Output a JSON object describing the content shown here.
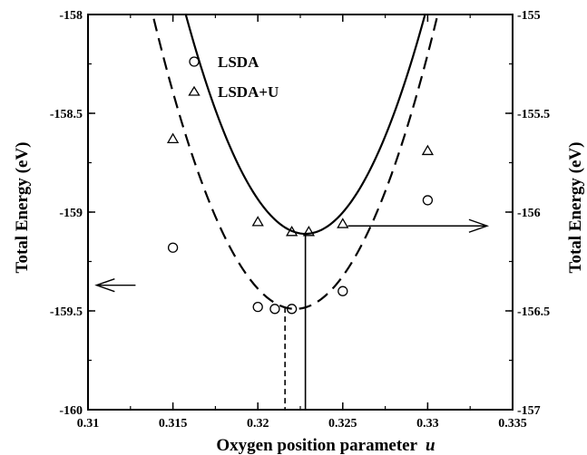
{
  "chart_data": {
    "type": "scatter",
    "xlabel": "Oxygen position parameter",
    "xlabel_symbol": "u",
    "ylabel_left": "Total Energy (eV)",
    "ylabel_right": "Total Energy (eV)",
    "xlim": [
      0.31,
      0.335
    ],
    "ylim_left": [
      -160,
      -158
    ],
    "ylim_right": [
      -157,
      -155
    ],
    "x_ticks": [
      0.31,
      0.315,
      0.32,
      0.325,
      0.33,
      0.335
    ],
    "x_tick_labels": [
      "0.31",
      "0.315",
      "0.32",
      "0.325",
      "0.33",
      "0.335"
    ],
    "y_left_ticks": [
      -160,
      -159.5,
      -159,
      -158.5,
      -158
    ],
    "y_left_tick_labels": [
      "-160",
      "-159.5",
      "-159",
      "-158.5",
      "-158"
    ],
    "y_right_ticks": [
      -157,
      -156.5,
      -156,
      -155.5,
      -155
    ],
    "y_right_tick_labels": [
      "-157",
      "-156.5",
      "-156",
      "-155.5",
      "-155"
    ],
    "series": [
      {
        "name": "LSDA",
        "axis": "left",
        "marker": "circle",
        "fit_line": "dashed",
        "x": [
          0.315,
          0.32,
          0.321,
          0.322,
          0.325,
          0.33
        ],
        "y": [
          -159.18,
          -159.48,
          -159.49,
          -159.49,
          -159.4,
          -158.94
        ]
      },
      {
        "name": "LSDA+U",
        "axis": "right",
        "marker": "triangle",
        "fit_line": "solid",
        "x": [
          0.315,
          0.32,
          0.322,
          0.323,
          0.325,
          0.33
        ],
        "y": [
          -155.63,
          -156.05,
          -156.1,
          -156.1,
          -156.06,
          -155.69
        ]
      }
    ],
    "fits": [
      {
        "series": "LSDA",
        "axis": "left",
        "vertex_x": 0.3222,
        "vertex_y": -159.49,
        "a": 21170
      },
      {
        "series": "LSDA+U",
        "axis": "right",
        "vertex_x": 0.3228,
        "vertex_y": -156.11,
        "a": 22370
      }
    ],
    "minimum_markers": [
      {
        "x": 0.3216,
        "style": "dashed",
        "series": "LSDA"
      },
      {
        "x": 0.3228,
        "style": "solid",
        "series": "LSDA+U"
      }
    ],
    "axis_arrows": [
      {
        "points_to": "left",
        "series": "LSDA",
        "x_from": 0.3128,
        "x_to": 0.3105,
        "y": -159.37
      },
      {
        "points_to": "right",
        "series": "LSDA+U",
        "x_from": 0.3253,
        "x_to": 0.3335,
        "y": -159.07
      }
    ],
    "legend_position": "top-left",
    "grid": false
  }
}
